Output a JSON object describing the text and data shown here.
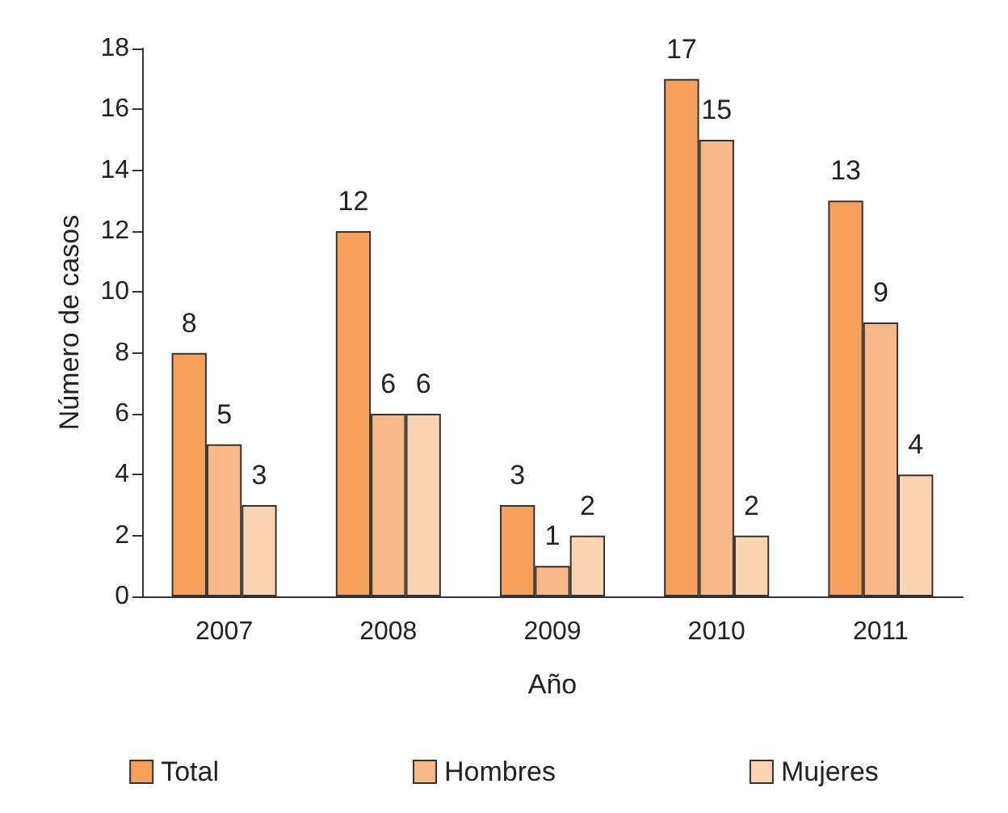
{
  "chart_data": {
    "type": "bar",
    "xlabel": "Año",
    "ylabel": "Número de casos",
    "categories": [
      "2007",
      "2008",
      "2009",
      "2010",
      "2011"
    ],
    "series": [
      {
        "name": "Total",
        "color": "#f7a05a",
        "values": [
          8,
          12,
          3,
          17,
          13
        ]
      },
      {
        "name": "Hombres",
        "color": "#f8b888",
        "values": [
          5,
          6,
          1,
          15,
          9
        ]
      },
      {
        "name": "Mujeres",
        "color": "#fbd4b2",
        "values": [
          3,
          6,
          2,
          2,
          4
        ]
      }
    ],
    "ylim": [
      0,
      18
    ],
    "yticks": [
      0,
      2,
      4,
      6,
      8,
      10,
      12,
      14,
      16,
      18
    ],
    "grid": false,
    "data_labels": true,
    "legend": "bottom"
  }
}
